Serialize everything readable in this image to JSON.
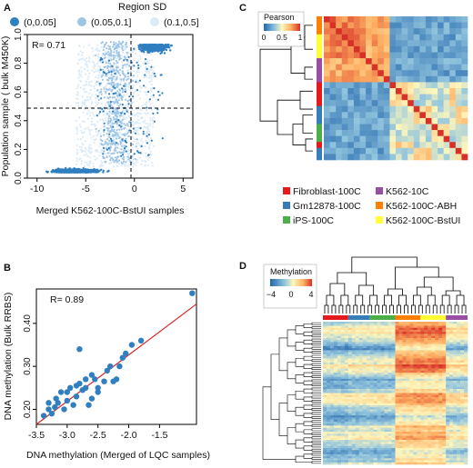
{
  "panel_letters": {
    "a": "A",
    "b": "B",
    "c": "C",
    "d": "D"
  },
  "colors": {
    "sd_dark": "#2f7fc1",
    "sd_mid": "#9ec5e6",
    "sd_light": "#dcebf7",
    "fibroblast": "#e41a1c",
    "gm12878": "#377eb8",
    "ips": "#4daf4a",
    "k562": "#984ea3",
    "k562_abh": "#ff7f00",
    "k562_bstui": "#ffff33",
    "fit_line": "#d62728",
    "point": "#2f7fc1"
  },
  "chart_data": [
    {
      "panel": "A",
      "type": "scatter",
      "legend_title": "Region SD",
      "legend": [
        "(0,0.05]",
        "(0.05,0.1]",
        "(0.1,0.5]"
      ],
      "annotation": "R= 0.71",
      "xlabel": "Merged K562-100C-BstUI samples",
      "ylabel": "Population sample ( bulk M450K)",
      "xlim": [
        -11,
        6
      ],
      "ylim": [
        0,
        1
      ],
      "xticks": [
        -10,
        -5,
        0,
        5
      ],
      "yticks": [
        0.0,
        0.2,
        0.4,
        0.6,
        0.8,
        1.0
      ],
      "yticklabels": [
        "0.0",
        "0.2",
        "0.4",
        "0.6",
        "0.8",
        "1.0"
      ],
      "hline": 0.5,
      "vline": -1
    },
    {
      "panel": "B",
      "type": "scatter",
      "annotation": "R= 0.89",
      "xlabel": "DNA methylation (Merged of LQC samples)",
      "ylabel": "DNA methylation (Bulk RRBS)",
      "xlim": [
        -3.5,
        -0.9
      ],
      "ylim": [
        0.165,
        0.48
      ],
      "xticks": [
        -3.5,
        -3.0,
        -2.5,
        -2.0,
        -1.5
      ],
      "xticklabels": [
        "-3.5",
        "-3.0",
        "-2.5",
        "-2.0",
        "-1.5"
      ],
      "yticks": [
        0.2,
        0.3,
        0.4
      ],
      "yticklabels": [
        "0.20",
        "0.30",
        "0.40"
      ],
      "fit": {
        "x0": -3.5,
        "y0": 0.165,
        "x1": -0.9,
        "y1": 0.445
      },
      "points": [
        [
          -3.38,
          0.185
        ],
        [
          -3.3,
          0.2
        ],
        [
          -3.25,
          0.19
        ],
        [
          -3.2,
          0.205
        ],
        [
          -3.15,
          0.215
        ],
        [
          -3.3,
          0.215
        ],
        [
          -3.18,
          0.225
        ],
        [
          -3.05,
          0.2
        ],
        [
          -3.0,
          0.22
        ],
        [
          -3.1,
          0.24
        ],
        [
          -3.0,
          0.24
        ],
        [
          -2.95,
          0.25
        ],
        [
          -2.9,
          0.21
        ],
        [
          -2.85,
          0.23
        ],
        [
          -2.8,
          0.26
        ],
        [
          -2.75,
          0.245
        ],
        [
          -2.7,
          0.25
        ],
        [
          -2.65,
          0.21
        ],
        [
          -2.6,
          0.225
        ],
        [
          -2.85,
          0.255
        ],
        [
          -2.7,
          0.27
        ],
        [
          -2.6,
          0.28
        ],
        [
          -2.55,
          0.27
        ],
        [
          -2.5,
          0.25
        ],
        [
          -2.4,
          0.265
        ],
        [
          -2.35,
          0.29
        ],
        [
          -2.3,
          0.3
        ],
        [
          -2.25,
          0.265
        ],
        [
          -2.2,
          0.27
        ],
        [
          -2.15,
          0.3
        ],
        [
          -2.1,
          0.32
        ],
        [
          -2.05,
          0.33
        ],
        [
          -1.95,
          0.35
        ],
        [
          -1.8,
          0.36
        ],
        [
          -2.8,
          0.34
        ],
        [
          -2.5,
          0.24
        ],
        [
          -0.97,
          0.47
        ]
      ]
    },
    {
      "panel": "C",
      "type": "heatmap",
      "scale_title": "Pearson",
      "scale_ticks": [
        "0",
        "0.5",
        "1"
      ],
      "legend": [
        {
          "label": "Fibroblast-100C",
          "key": "fibroblast"
        },
        {
          "label": "K562-10C",
          "key": "k562"
        },
        {
          "label": "Gm12878-100C",
          "key": "gm12878"
        },
        {
          "label": "K562-100C-ABH",
          "key": "k562_abh"
        },
        {
          "label": "iPS-100C",
          "key": "ips"
        },
        {
          "label": "K562-100C-BstUI",
          "key": "k562_bstui"
        }
      ]
    },
    {
      "panel": "D",
      "type": "heatmap",
      "scale_title": "Methylation",
      "scale_ticks": [
        "−4",
        "0",
        "4"
      ]
    }
  ]
}
